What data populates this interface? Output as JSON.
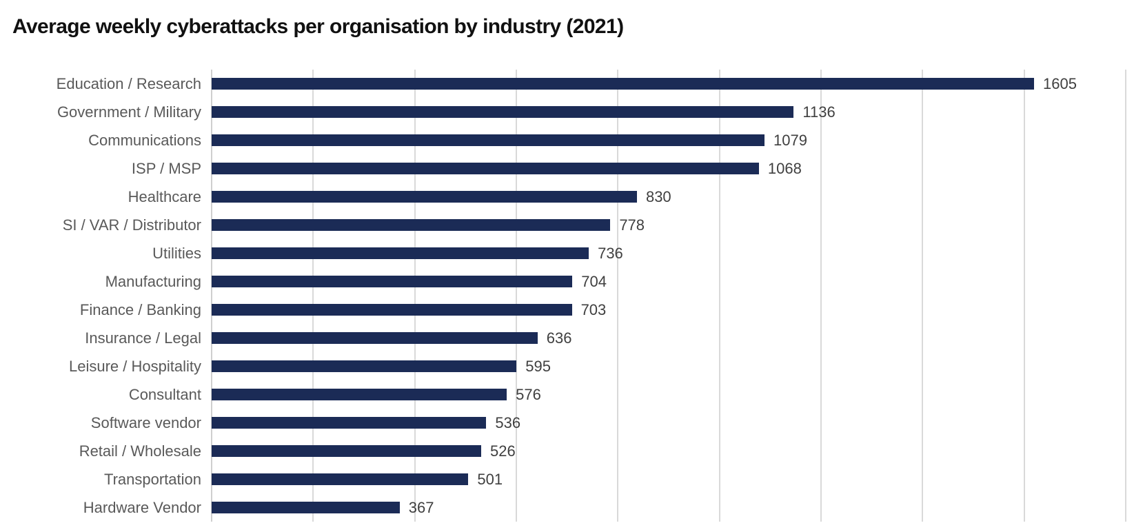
{
  "chart_data": {
    "type": "bar",
    "orientation": "horizontal",
    "title": "Average weekly cyberattacks per organisation by industry (2021)",
    "categories": [
      "Education / Research",
      "Government / Military",
      "Communications",
      "ISP / MSP",
      "Healthcare",
      "SI / VAR / Distributor",
      "Utilities",
      "Manufacturing",
      "Finance / Banking",
      "Insurance / Legal",
      "Leisure / Hospitality",
      "Consultant",
      "Software vendor",
      "Retail / Wholesale",
      "Transportation",
      "Hardware Vendor"
    ],
    "values": [
      1605,
      1136,
      1079,
      1068,
      830,
      778,
      736,
      704,
      703,
      636,
      595,
      576,
      536,
      526,
      501,
      367
    ],
    "xlabel": "",
    "ylabel": "",
    "xlim": [
      0,
      1800
    ],
    "gridline_interval": 200,
    "grid": true,
    "tick_labels_shown": false,
    "legend": "none",
    "data_labels": "end-of-bar",
    "colors": {
      "bar": "#1b2b56",
      "category_label": "#595959",
      "value_label": "#3f3f3f",
      "gridline": "#d9d9d9",
      "axis_line": "#cfcfcf",
      "title": "#111111",
      "background": "#ffffff"
    }
  }
}
